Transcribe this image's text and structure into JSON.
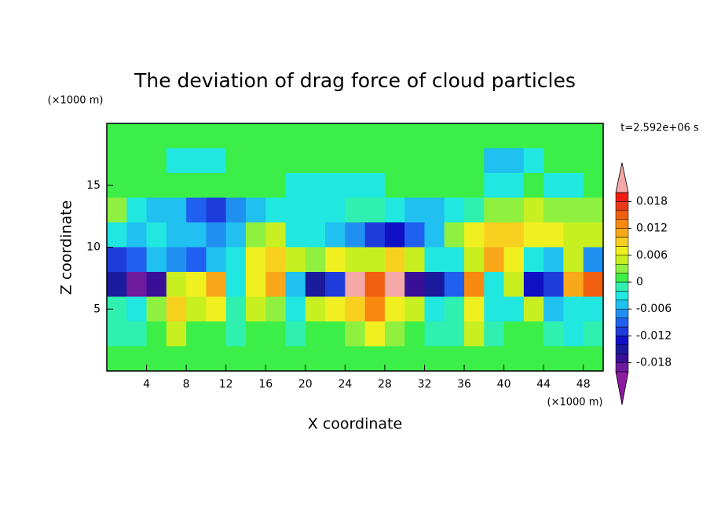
{
  "chart_data": {
    "type": "contour",
    "title": "The deviation of drag force of cloud particles",
    "y_units": "(×1000 m)",
    "x_units": "(×1000 m)",
    "time_label": "t=2.592e+06 s",
    "xlabel": "X coordinate",
    "ylabel": "Z coordinate",
    "xlim": [
      0,
      50
    ],
    "ylim": [
      0,
      20
    ],
    "xticks": [
      4,
      8,
      12,
      16,
      20,
      24,
      28,
      32,
      36,
      40,
      44,
      48
    ],
    "yticks": [
      5,
      10,
      15
    ],
    "x": [
      1,
      3,
      5,
      7,
      9,
      11,
      13,
      15,
      17,
      19,
      21,
      23,
      25,
      27,
      29,
      31,
      33,
      35,
      37,
      39,
      41,
      43,
      45,
      47,
      49
    ],
    "z": [
      19,
      17,
      15,
      13,
      11,
      9,
      7,
      5,
      3,
      1
    ],
    "values": [
      [
        0,
        0,
        0,
        0,
        0,
        0,
        0,
        0,
        0,
        0,
        0,
        0,
        0,
        0,
        0,
        0,
        0,
        0,
        0,
        0,
        0,
        0,
        0,
        0,
        0
      ],
      [
        0,
        0,
        0,
        -0.003,
        -0.003,
        -0.003,
        0,
        0,
        0,
        0,
        0,
        0,
        0,
        0,
        0,
        0,
        0,
        0,
        0,
        -0.005,
        -0.005,
        -0.003,
        0,
        0,
        0
      ],
      [
        0,
        0,
        0,
        0,
        0,
        0,
        0,
        0,
        0,
        -0.003,
        -0.003,
        -0.003,
        -0.003,
        -0.003,
        0,
        0,
        0,
        0,
        0,
        -0.003,
        -0.003,
        0,
        -0.003,
        -0.003,
        0
      ],
      [
        0.002,
        -0.003,
        -0.005,
        -0.006,
        -0.009,
        -0.012,
        -0.007,
        -0.005,
        -0.004,
        -0.004,
        -0.003,
        -0.003,
        -0.002,
        -0.002,
        -0.003,
        -0.005,
        -0.006,
        -0.004,
        -0.002,
        0.002,
        0.003,
        0.004,
        0.003,
        0.002,
        0.002
      ],
      [
        -0.003,
        -0.006,
        -0.004,
        -0.005,
        -0.006,
        -0.007,
        -0.005,
        0.003,
        0.004,
        -0.004,
        -0.003,
        -0.005,
        -0.008,
        -0.012,
        -0.014,
        -0.01,
        -0.006,
        0.002,
        0.006,
        0.008,
        0.008,
        0.006,
        0.006,
        0.004,
        0.004
      ],
      [
        -0.012,
        -0.01,
        -0.006,
        -0.008,
        -0.01,
        -0.006,
        -0.004,
        0.006,
        0.008,
        0.004,
        0.002,
        0.006,
        0.005,
        0.004,
        0.008,
        0.004,
        -0.003,
        -0.004,
        0.004,
        0.01,
        0.006,
        -0.004,
        -0.006,
        0.004,
        -0.008
      ],
      [
        -0.015,
        -0.02,
        -0.018,
        0.004,
        0.006,
        0.01,
        -0.004,
        0.006,
        0.01,
        -0.006,
        -0.016,
        -0.012,
        0.02,
        0.014,
        0.022,
        -0.018,
        -0.016,
        -0.01,
        0.012,
        -0.004,
        0.004,
        -0.014,
        -0.012,
        0.01,
        0.014
      ],
      [
        -0.002,
        -0.003,
        0.002,
        0.008,
        0.004,
        0.006,
        -0.002,
        0.004,
        0.002,
        -0.003,
        0.004,
        0.006,
        0.008,
        0.012,
        0.006,
        0.004,
        -0.004,
        -0.002,
        0.006,
        -0.004,
        -0.004,
        0.004,
        -0.005,
        -0.004,
        -0.003
      ],
      [
        -0.002,
        -0.002,
        0,
        0.004,
        0,
        0,
        -0.002,
        0,
        0,
        -0.002,
        0,
        0,
        0.002,
        0.006,
        0.002,
        0,
        -0.002,
        -0.002,
        0.004,
        -0.002,
        0,
        0,
        -0.002,
        -0.003,
        -0.002
      ],
      [
        0,
        0,
        0,
        0,
        0,
        0,
        0,
        0,
        0,
        0,
        0,
        0,
        0,
        0,
        0,
        0,
        0,
        0,
        0,
        0,
        0,
        0,
        0,
        0,
        0
      ]
    ],
    "colorbar": {
      "levels": [
        -0.02,
        -0.018,
        -0.016,
        -0.014,
        -0.012,
        -0.01,
        -0.008,
        -0.006,
        -0.004,
        -0.002,
        0,
        0.002,
        0.004,
        0.006,
        0.008,
        0.01,
        0.012,
        0.014,
        0.016,
        0.018,
        0.02
      ],
      "colors": [
        "#8e1aa0",
        "#6e1a9c",
        "#3a0f98",
        "#1a1a9c",
        "#1010c4",
        "#1e3cdc",
        "#2060f0",
        "#2090f0",
        "#20c0f0",
        "#20e8e0",
        "#30f0b0",
        "#3cee48",
        "#90f040",
        "#c8f020",
        "#f0f020",
        "#f8d020",
        "#f8a818",
        "#f88810",
        "#f06010",
        "#e83a18",
        "#f01c10",
        "#f4a8a8"
      ],
      "ticks": [
        -0.018,
        -0.012,
        -0.006,
        0,
        0.006,
        0.012,
        0.018
      ]
    }
  }
}
